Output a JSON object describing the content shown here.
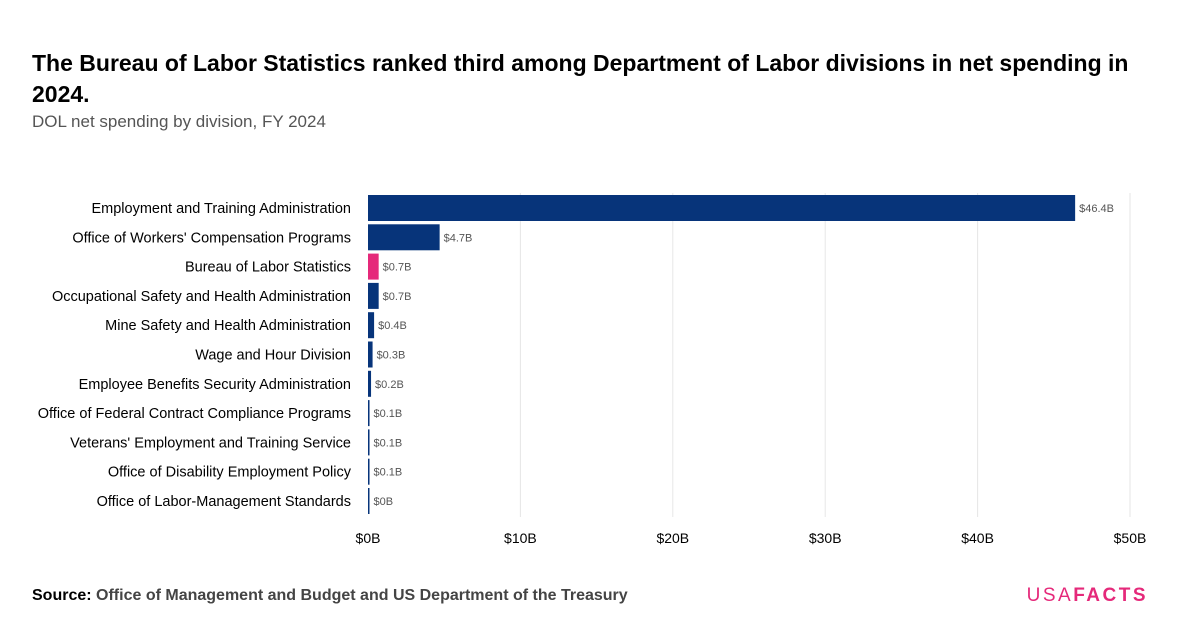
{
  "title": "The Bureau of Labor Statistics ranked third among Department of Labor divisions in net spending in 2024.",
  "subtitle": "DOL net spending by division, FY 2024",
  "source_label": "Source:",
  "source_text": "Office of Management and Budget and US Department of the Treasury",
  "logo": {
    "usa": "USA",
    "facts": "FACTS"
  },
  "colors": {
    "primary": "#07347a",
    "highlight": "#e5297a",
    "grid": "#e6e6e6",
    "axis_text": "#000000",
    "label_text": "#555555"
  },
  "chart_data": {
    "type": "bar",
    "orientation": "horizontal",
    "categories": [
      "Employment and Training Administration",
      "Office of Workers' Compensation Programs",
      "Bureau of Labor Statistics",
      "Occupational Safety and Health Administration",
      "Mine Safety and Health Administration",
      "Wage and Hour Division",
      "Employee Benefits Security Administration",
      "Office of Federal Contract Compliance Programs",
      "Veterans' Employment and Training Service",
      "Office of Disability Employment Policy",
      "Office of Labor-Management Standards"
    ],
    "values": [
      46.4,
      4.7,
      0.7,
      0.7,
      0.4,
      0.3,
      0.2,
      0.1,
      0.1,
      0.1,
      0.04
    ],
    "value_labels": [
      "$46.4B",
      "$4.7B",
      "$0.7B",
      "$0.7B",
      "$0.4B",
      "$0.3B",
      "$0.2B",
      "$0.1B",
      "$0.1B",
      "$0.1B",
      "$0B"
    ],
    "highlight": "Bureau of Labor Statistics",
    "xlim": [
      0,
      50
    ],
    "xticks": [
      0,
      10,
      20,
      30,
      40,
      50
    ],
    "xtick_labels": [
      "$0B",
      "$10B",
      "$20B",
      "$30B",
      "$40B",
      "$50B"
    ],
    "grid": true
  }
}
